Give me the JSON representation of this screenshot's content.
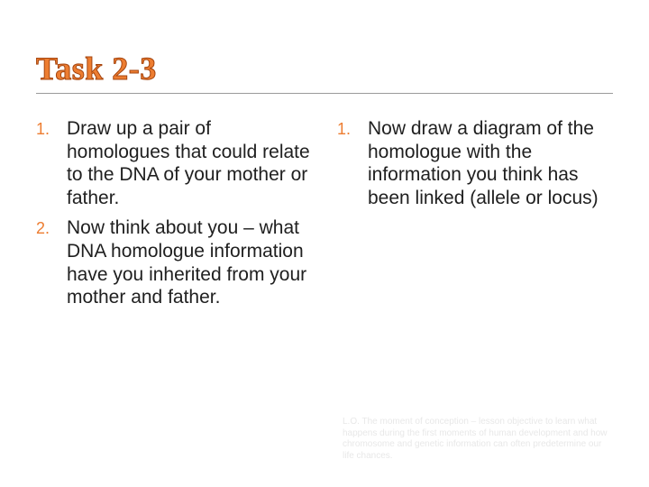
{
  "slide": {
    "title": "Task 2-3",
    "title_color": "#ed7d31",
    "title_stroke": "#a5450f",
    "title_font_family": "Times New Roman",
    "title_fontsize": 36,
    "body_fontsize": 21,
    "body_color": "#202020",
    "number_color": "#ed7d31",
    "divider_color": "#9a9a9a",
    "background_color": "#ffffff",
    "left": {
      "items": [
        {
          "n": "1.",
          "text": "Draw up a pair of homologues that could relate to the DNA of your mother or father."
        },
        {
          "n": "2.",
          "text": "Now think about you – what DNA homologue information have you inherited from your mother and father."
        }
      ]
    },
    "right": {
      "items": [
        {
          "n": "1.",
          "text": "Now draw a diagram of the homologue with the information you think has been linked (allele or locus)"
        }
      ]
    },
    "footer": {
      "text": "L.O. The moment of conception – lesson objective to learn what happens during the first moments of human development and how chromosome and genetic information can often predetermine our life chances.",
      "color": "#e8e8e8",
      "fontsize": 10
    }
  }
}
